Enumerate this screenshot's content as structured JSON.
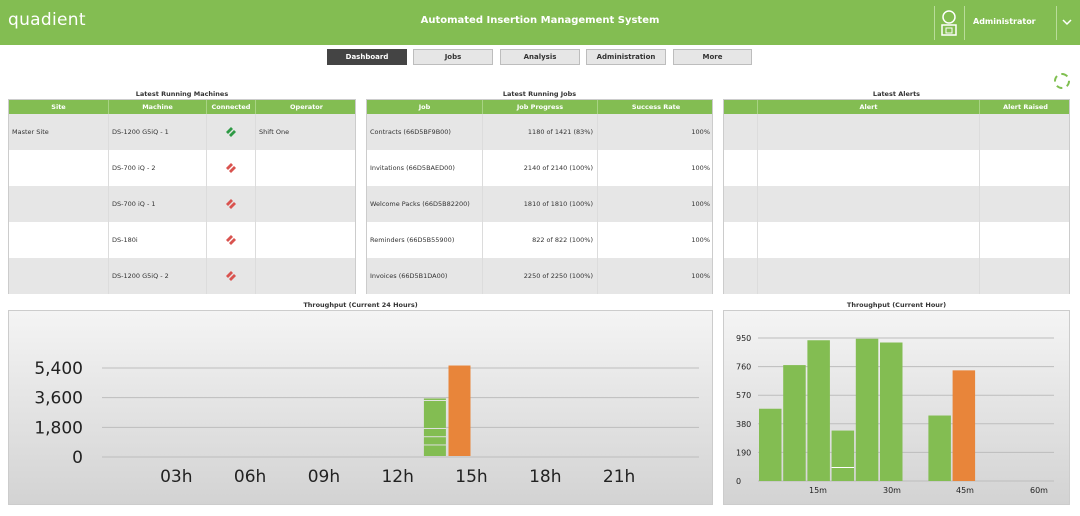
{
  "header": {
    "logo": "quadient",
    "title": "Automated Insertion Management System",
    "user": "Administrator"
  },
  "nav": [
    "Dashboard",
    "Jobs",
    "Analysis",
    "Administration",
    "More"
  ],
  "machines": {
    "title": "Latest Running Machines",
    "columns": [
      "Site",
      "Machine",
      "Connected",
      "Operator"
    ],
    "rows": [
      {
        "site": "Master Site",
        "machine": "DS-1200 G5iQ - 1",
        "connected": true,
        "operator": "Shift One"
      },
      {
        "site": "",
        "machine": "DS-700 iQ - 2",
        "connected": false,
        "operator": ""
      },
      {
        "site": "",
        "machine": "DS-700 iQ - 1",
        "connected": false,
        "operator": ""
      },
      {
        "site": "",
        "machine": "DS-180i",
        "connected": false,
        "operator": ""
      },
      {
        "site": "",
        "machine": "DS-1200 G5iQ - 2",
        "connected": false,
        "operator": ""
      }
    ]
  },
  "jobs": {
    "title": "Latest Running Jobs",
    "columns": [
      "Job",
      "Job Progress",
      "Success Rate"
    ],
    "rows": [
      {
        "job": "Contracts (66D5BF9B00)",
        "progress": "1180 of 1421 (83%)",
        "rate": "100%"
      },
      {
        "job": "Invitations (66D5BAED00)",
        "progress": "2140 of 2140 (100%)",
        "rate": "100%"
      },
      {
        "job": "Welcome Packs (66D5B82200)",
        "progress": "1810 of 1810 (100%)",
        "rate": "100%"
      },
      {
        "job": "Reminders (66D5B55900)",
        "progress": "822 of 822 (100%)",
        "rate": "100%"
      },
      {
        "job": "Invoices (66D5B1DA00)",
        "progress": "2250 of 2250 (100%)",
        "rate": "100%"
      }
    ]
  },
  "alerts": {
    "title": "Latest Alerts",
    "columns": [
      "",
      "Alert",
      "Alert Raised"
    ]
  },
  "colors": {
    "green": "#83bd52",
    "orange": "#e8853a",
    "connected": "#2e9a45",
    "disconnected": "#d9534f"
  },
  "chart_data": [
    {
      "type": "bar",
      "title": "Throughput (Current 24 Hours)",
      "x_ticks": [
        "03h",
        "06h",
        "09h",
        "12h",
        "15h",
        "18h",
        "21h"
      ],
      "y_ticks": [
        "5,400",
        "3,600",
        "1,800",
        "0"
      ],
      "ylim": [
        0,
        5400
      ],
      "series": [
        {
          "hour": 14,
          "color": "green",
          "segments": [
            700,
            500,
            500,
            1700,
            150
          ]
        },
        {
          "hour": 15,
          "color": "orange",
          "segments": [
            5550
          ]
        }
      ]
    },
    {
      "type": "bar",
      "title": "Throughput (Current Hour)",
      "x_ticks": [
        "15m",
        "30m",
        "45m",
        "60m"
      ],
      "y_ticks": [
        "950",
        "760",
        "570",
        "380",
        "190",
        "0"
      ],
      "ylim": [
        0,
        950
      ],
      "bars": [
        {
          "color": "green",
          "value": 480
        },
        {
          "color": "green",
          "value": 770
        },
        {
          "color": "green",
          "value": 935
        },
        {
          "color": "green",
          "value": 335,
          "split": 90
        },
        {
          "color": "green",
          "value": 945
        },
        {
          "color": "green",
          "value": 920
        },
        {
          "color": "green",
          "value": 0
        },
        {
          "color": "green",
          "value": 435
        },
        {
          "color": "orange",
          "value": 735
        }
      ]
    }
  ]
}
